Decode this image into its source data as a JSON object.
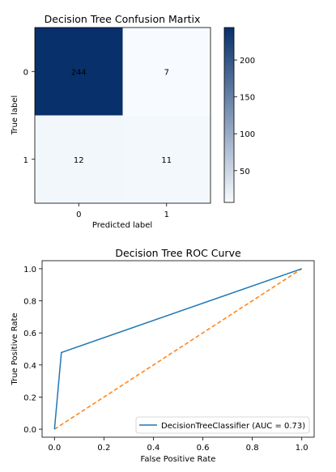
{
  "chart_data": [
    {
      "type": "heatmap",
      "title": "Decision Tree Confusion Martix",
      "xlabel": "Predicted label",
      "ylabel": "True label",
      "x_ticks": [
        "0",
        "1"
      ],
      "y_ticks": [
        "0",
        "1"
      ],
      "matrix": [
        [
          244,
          7
        ],
        [
          12,
          11
        ]
      ],
      "colormap": "Blues",
      "colorbar": {
        "ticks": [
          50,
          100,
          150,
          200
        ],
        "range": [
          7,
          244
        ]
      },
      "colors": {
        "dark": "#08306b",
        "light": "#f7fbff"
      }
    },
    {
      "type": "line",
      "title": "Decision Tree ROC Curve",
      "xlabel": "False Positive Rate",
      "ylabel": "True Positive Rate",
      "xlim": [
        -0.05,
        1.05
      ],
      "ylim": [
        -0.05,
        1.05
      ],
      "x_ticks": [
        0.0,
        0.2,
        0.4,
        0.6,
        0.8,
        1.0
      ],
      "y_ticks": [
        0.0,
        0.2,
        0.4,
        0.6,
        0.8,
        1.0
      ],
      "series": [
        {
          "name": "DecisionTreeClassifier (AUC = 0.73)",
          "color": "#1f77b4",
          "style": "solid",
          "x": [
            0.0,
            0.028,
            1.0
          ],
          "y": [
            0.0,
            0.478,
            1.0
          ]
        },
        {
          "color": "#ff7f0e",
          "style": "dashed",
          "x": [
            0.0,
            1.0
          ],
          "y": [
            0.0,
            1.0
          ]
        }
      ],
      "legend": "lower-right"
    }
  ]
}
